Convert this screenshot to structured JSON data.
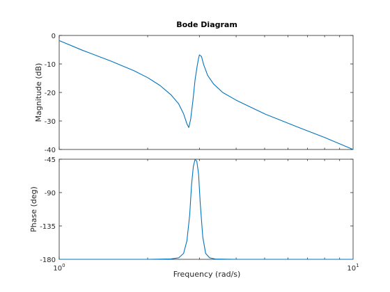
{
  "chart_data": {
    "type": "line",
    "title": "Bode Diagram",
    "xlabel": "Frequency  (rad/s)",
    "x_scale": "log",
    "xlim": [
      1,
      10
    ],
    "x_tick_labels": [
      {
        "value": 1,
        "base": "10",
        "exp": "0"
      },
      {
        "value": 10,
        "base": "10",
        "exp": "1"
      }
    ],
    "line_color": "#0072bd",
    "axes_color": "#262626",
    "grid": false,
    "subplots": [
      {
        "name": "magnitude",
        "ylabel": "Magnitude (dB)",
        "ylim": [
          -40,
          0
        ],
        "yticks": [
          0,
          -10,
          -20,
          -30,
          -40
        ],
        "ytick_labels": [
          "0",
          "-10",
          "-20",
          "-30",
          "-40"
        ],
        "series": [
          {
            "x": [
              1.0,
              1.2,
              1.5,
              1.8,
              2.0,
              2.2,
              2.4,
              2.55,
              2.65,
              2.72,
              2.76,
              2.8,
              2.85,
              2.9,
              2.95,
              2.98,
              3.0,
              3.05,
              3.1,
              3.2,
              3.35,
              3.6,
              4.0,
              5.0,
              6.5,
              8.0,
              10.0
            ],
            "y": [
              -1.8,
              -5.2,
              -9.0,
              -12.4,
              -14.8,
              -17.5,
              -20.8,
              -24.0,
              -27.5,
              -31.0,
              -32.3,
              -29.5,
              -23.0,
              -15.5,
              -10.5,
              -8.0,
              -6.8,
              -7.4,
              -10.2,
              -14.0,
              -17.0,
              -20.0,
              -22.7,
              -27.5,
              -32.2,
              -35.8,
              -40.0
            ]
          }
        ]
      },
      {
        "name": "phase",
        "ylabel": "Phase (deg)",
        "ylim": [
          -180,
          -45
        ],
        "yticks": [
          -45,
          -90,
          -135,
          -180
        ],
        "ytick_labels": [
          "-45",
          "-90",
          "-135",
          "-180"
        ],
        "series": [
          {
            "x": [
              1.0,
              2.0,
              2.4,
              2.55,
              2.65,
              2.72,
              2.78,
              2.82,
              2.86,
              2.9,
              2.94,
              2.98,
              3.02,
              3.08,
              3.15,
              3.25,
              3.4,
              4.0,
              6.0,
              10.0
            ],
            "y": [
              -180,
              -180,
              -179.5,
              -178,
              -172,
              -155,
              -120,
              -80,
              -55,
              -45,
              -48,
              -65,
              -105,
              -150,
              -172,
              -178,
              -179.6,
              -180,
              -180,
              -180
            ]
          }
        ]
      }
    ]
  }
}
